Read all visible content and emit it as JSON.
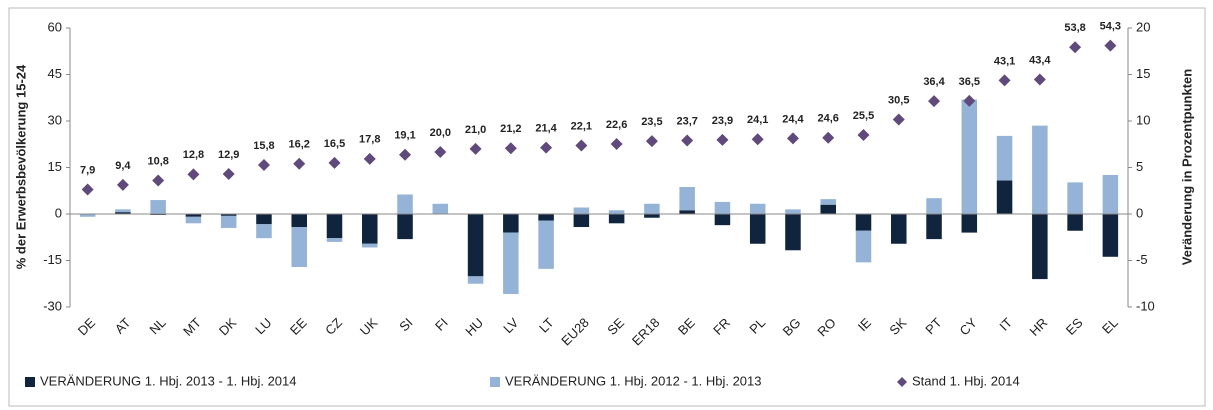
{
  "chart_data": {
    "type": "bar-line",
    "ylabel": "% der Erwerbsbevölkerung 15-24",
    "y2label": "Veränderung in Prozentpunkten",
    "categories": [
      "DE",
      "AT",
      "NL",
      "MT",
      "DK",
      "LU",
      "EE",
      "CZ",
      "UK",
      "SI",
      "FI",
      "HU",
      "LV",
      "LT",
      "EU28",
      "SE",
      "ER18",
      "BE",
      "FR",
      "PL",
      "BG",
      "RO",
      "IE",
      "SK",
      "PT",
      "CY",
      "IT",
      "HR",
      "ES",
      "EL"
    ],
    "ylim": [
      -30,
      60
    ],
    "yticks": [
      -30,
      -15,
      0,
      15,
      30,
      45,
      60
    ],
    "y2lim": [
      -10,
      20
    ],
    "y2ticks": [
      -10,
      -5,
      0,
      5,
      10,
      15,
      20
    ],
    "legend": "bottom",
    "series": [
      {
        "name": "VERÄNDERUNG 1. Hbj. 2013 - 1. Hbj. 2014",
        "color": "#10243e",
        "axis": "y2",
        "stacked": true,
        "values": [
          0,
          0.2,
          -0.1,
          -0.3,
          -0.2,
          -1.1,
          -1.4,
          -2.6,
          -3.2,
          -2.7,
          0,
          -6.7,
          -2.0,
          -0.7,
          -1.4,
          -1.0,
          -0.4,
          0.4,
          -1.2,
          -3.2,
          -3.9,
          1.0,
          -1.8,
          -3.2,
          -2.7,
          -2.0,
          3.6,
          -7.0,
          -1.8,
          -4.6
        ]
      },
      {
        "name": "VERÄNDERUNG 1. Hbj. 2012 - 1. Hbj. 2013",
        "color": "#95b3d7",
        "axis": "y2",
        "stacked": true,
        "values": [
          -0.3,
          0.3,
          1.5,
          -0.7,
          -1.3,
          -1.5,
          -4.3,
          -0.4,
          -0.4,
          2.1,
          1.1,
          -0.8,
          -6.6,
          -5.2,
          0.7,
          0.4,
          1.1,
          2.5,
          1.3,
          1.1,
          0.5,
          0.6,
          -3.4,
          0,
          1.7,
          12.3,
          4.8,
          9.5,
          3.4,
          4.2
        ]
      },
      {
        "name": "Stand 1. Hbj. 2014",
        "color": "#604a7b",
        "marker": "diamond",
        "values": [
          7.9,
          9.4,
          10.8,
          12.8,
          12.9,
          15.8,
          16.2,
          16.5,
          17.8,
          19.1,
          20.0,
          21.0,
          21.2,
          21.4,
          22.1,
          22.6,
          23.5,
          23.7,
          23.9,
          24.1,
          24.4,
          24.6,
          25.5,
          30.5,
          36.4,
          36.5,
          43.1,
          43.4,
          53.8,
          54.3
        ],
        "value_labels": [
          "7,9",
          "9,4",
          "10,8",
          "12,8",
          "12,9",
          "15,8",
          "16,2",
          "16,5",
          "17,8",
          "19,1",
          "20,0",
          "21,0",
          "21,2",
          "21,4",
          "22,1",
          "22,6",
          "23,5",
          "23,7",
          "23,9",
          "24,1",
          "24,4",
          "24,6",
          "25,5",
          "30,5",
          "36,4",
          "36,5",
          "43,1",
          "43,4",
          "53,8",
          "54,3"
        ]
      }
    ]
  }
}
